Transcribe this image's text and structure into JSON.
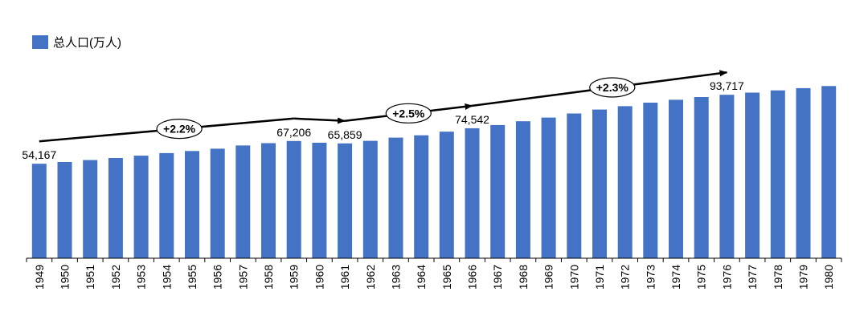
{
  "chart_data": {
    "type": "bar",
    "title": "",
    "xlabel": "",
    "ylabel": "",
    "legend": {
      "label": "总人口(万人)",
      "placement": "top-left"
    },
    "color": "#4472C4",
    "categories": [
      "1949",
      "1950",
      "1951",
      "1952",
      "1953",
      "1954",
      "1955",
      "1956",
      "1957",
      "1958",
      "1959",
      "1960",
      "1961",
      "1962",
      "1963",
      "1964",
      "1965",
      "1966",
      "1967",
      "1968",
      "1969",
      "1970",
      "1971",
      "1972",
      "1973",
      "1974",
      "1975",
      "1976",
      "1977",
      "1978",
      "1979",
      "1980"
    ],
    "values": [
      54167,
      55196,
      56300,
      57482,
      58796,
      60266,
      61465,
      62828,
      64653,
      65994,
      67206,
      66207,
      65859,
      67295,
      69172,
      70499,
      72538,
      74542,
      76368,
      78534,
      80671,
      82992,
      85229,
      87177,
      89211,
      90859,
      92420,
      93717,
      94974,
      96259,
      97542,
      98705
    ],
    "ylim": [
      0,
      103000
    ],
    "data_labels": [
      {
        "index": 0,
        "text": "54,167"
      },
      {
        "index": 10,
        "text": "67,206"
      },
      {
        "index": 12,
        "text": "65,859"
      },
      {
        "index": 17,
        "text": "74,542"
      },
      {
        "index": 27,
        "text": "93,717"
      }
    ],
    "annotations": [
      {
        "text": "+2.2%",
        "from_index": 0,
        "to_index": 10
      },
      {
        "text": "+2.5%",
        "from_index": 12,
        "to_index": 17
      },
      {
        "text": "+2.3%",
        "from_index": 17,
        "to_index": 27
      }
    ]
  }
}
